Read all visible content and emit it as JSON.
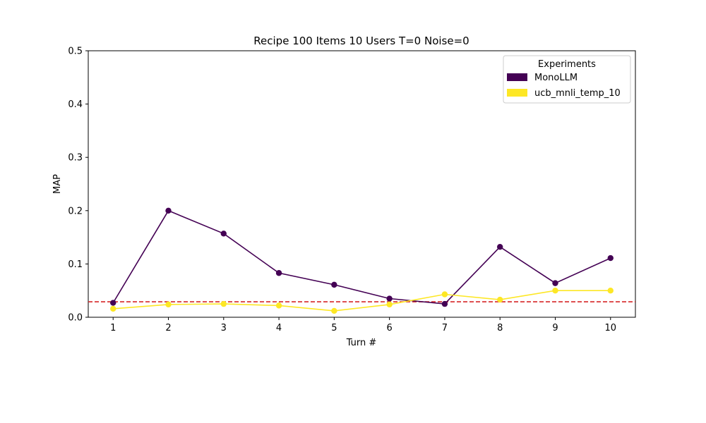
{
  "chart_data": {
    "type": "line",
    "title": "Recipe 100 Items 10 Users T=0 Noise=0",
    "xlabel": "Turn #",
    "ylabel": "MAP",
    "x": [
      1,
      2,
      3,
      4,
      5,
      6,
      7,
      8,
      9,
      10
    ],
    "xticks": [
      "1",
      "2",
      "3",
      "4",
      "5",
      "6",
      "7",
      "8",
      "9",
      "10"
    ],
    "xlim": [
      0.55,
      10.45
    ],
    "ylim": [
      0,
      0.5
    ],
    "yticks": [
      "0.0",
      "0.1",
      "0.2",
      "0.3",
      "0.4",
      "0.5"
    ],
    "ytick_values": [
      0,
      0.1,
      0.2,
      0.3,
      0.4,
      0.5
    ],
    "series": [
      {
        "name": "MonoLLM",
        "color": "#440154",
        "values": [
          0.027,
          0.2,
          0.157,
          0.083,
          0.061,
          0.035,
          0.025,
          0.132,
          0.064,
          0.111
        ]
      },
      {
        "name": "ucb_mnli_temp_10",
        "color": "#fde725",
        "values": [
          0.016,
          0.024,
          0.025,
          0.022,
          0.012,
          0.024,
          0.043,
          0.033,
          0.05,
          0.05
        ]
      }
    ],
    "reference_line": {
      "y": 0.029,
      "color": "#d62728",
      "style": "dashed"
    },
    "legend": {
      "title": "Experiments",
      "position": "top-right"
    },
    "grid": false
  }
}
